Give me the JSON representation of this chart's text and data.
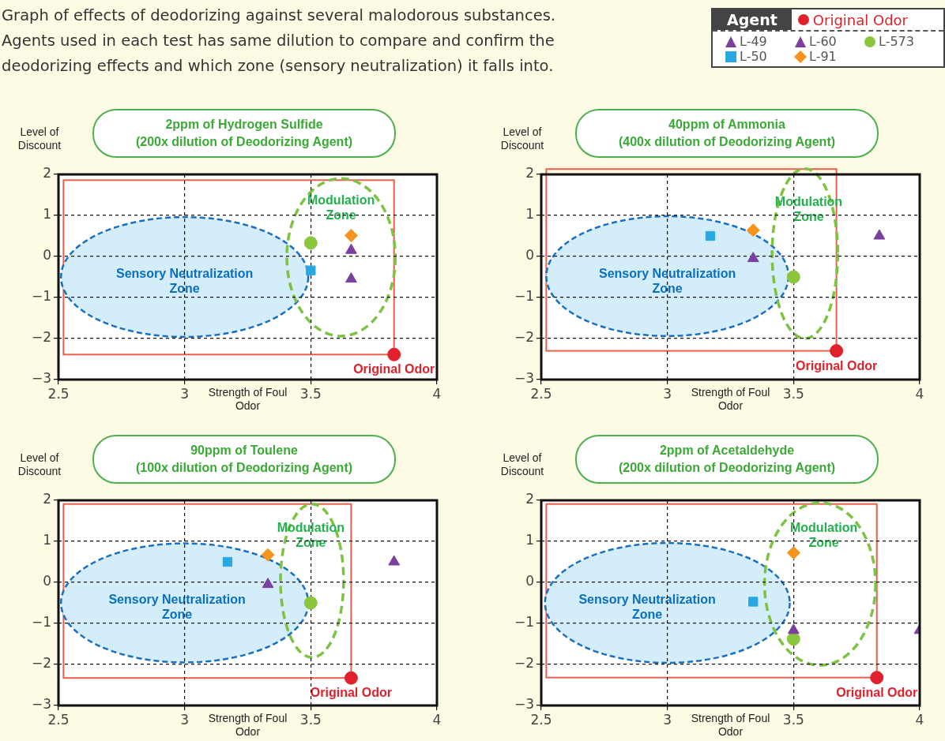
{
  "chart_data": [
    {
      "type": "scatter",
      "title": "2ppm of Hydrogen Sulfide\n(200x dilution of Deodorizing Agent)",
      "xlabel": "Strength of Foul Odor",
      "ylabel": "Level of Discount",
      "xlim": [
        2.5,
        4
      ],
      "xticks": [
        2.5,
        3,
        3.5,
        4
      ],
      "ylim": [
        -3,
        2
      ],
      "yticks": [
        -3,
        -2,
        -1,
        0,
        1,
        2
      ],
      "grid": true,
      "legend": "top right",
      "legend_title": "Agent",
      "annotations": [
        "Sensory Neutralization Zone",
        "Modulation Zone",
        "Graph of effects of deodorizing against several malodorous substances.\nAgents used in each test has same dilution to compare and confirm the\ndeodorizing effects and which zone (sensory neutralization) it falls into."
      ],
      "series": [
        {
          "name": "L-49",
          "color": "#7b3f9e",
          "marker": "triangle",
          "x": [
            3.66
          ],
          "values": [
            0.15
          ]
        },
        {
          "name": "L-60",
          "color": "#7b3f9e",
          "marker": "triangle",
          "x": [
            3.66
          ],
          "values": [
            -0.55
          ]
        },
        {
          "name": "L-573",
          "color": "#8cc63f",
          "marker": "circle",
          "x": [
            3.5
          ],
          "values": [
            0.33
          ]
        },
        {
          "name": "L-50",
          "color": "#29a8e0",
          "marker": "square",
          "x": [
            3.5
          ],
          "values": [
            -0.34
          ]
        },
        {
          "name": "L-91",
          "color": "#f7941d",
          "marker": "diamond",
          "x": [
            3.66
          ],
          "values": [
            0.51
          ]
        },
        {
          "name": "Original Odor",
          "color": "#e0202a",
          "marker": "circle",
          "x": [
            3.83
          ],
          "values": [
            -2.39
          ]
        }
      ]
    },
    {
      "type": "scatter",
      "title": "40ppm of Ammonia\n(400x dilution of Deodorizing Agent)",
      "xlabel": "Strength of Foul Odor",
      "ylabel": "Level of Discount",
      "xlim": [
        2.5,
        4
      ],
      "xticks": [
        2.5,
        3,
        3.5,
        4
      ],
      "ylim": [
        -3,
        2
      ],
      "yticks": [
        -3,
        -2,
        -1,
        0,
        1,
        2
      ],
      "grid": true,
      "annotations": [
        "Sensory Neutralization Zone",
        "Modulation Zone"
      ],
      "series": [
        {
          "color": "#7b3f9e",
          "marker": "triangle",
          "x": [
            3.84
          ],
          "values": [
            0.5
          ]
        },
        {
          "color": "#7b3f9e",
          "marker": "triangle",
          "x": [
            3.34
          ],
          "values": [
            -0.05
          ]
        },
        {
          "color": "#8cc63f",
          "marker": "circle",
          "x": [
            3.5
          ],
          "values": [
            -0.5
          ]
        },
        {
          "color": "#29a8e0",
          "marker": "square",
          "x": [
            3.17
          ],
          "values": [
            0.5
          ]
        },
        {
          "color": "#f7941d",
          "marker": "diamond",
          "x": [
            3.34
          ],
          "values": [
            0.64
          ]
        },
        {
          "name": "Original Odor",
          "color": "#e0202a",
          "marker": "circle",
          "x": [
            3.67
          ],
          "values": [
            -2.3
          ]
        }
      ]
    },
    {
      "type": "scatter",
      "title": "90ppm of Toulene\n(100x dilution of Deodorizing Agent)",
      "xlabel": "Strength of Foul Odor",
      "ylabel": "Level of Discount",
      "xlim": [
        2.5,
        4
      ],
      "xticks": [
        2.5,
        3,
        3.5,
        4
      ],
      "ylim": [
        -3,
        2
      ],
      "yticks": [
        -3,
        -2,
        -1,
        0,
        1,
        2
      ],
      "grid": true,
      "annotations": [
        "Sensory Neutralization Zone",
        "Modulation Zone"
      ],
      "series": [
        {
          "color": "#7b3f9e",
          "marker": "triangle",
          "x": [
            3.83
          ],
          "values": [
            0.5
          ]
        },
        {
          "color": "#7b3f9e",
          "marker": "triangle",
          "x": [
            3.33
          ],
          "values": [
            -0.05
          ]
        },
        {
          "color": "#8cc63f",
          "marker": "circle",
          "x": [
            3.5
          ],
          "values": [
            -0.5
          ]
        },
        {
          "color": "#29a8e0",
          "marker": "square",
          "x": [
            3.17
          ],
          "values": [
            0.5
          ]
        },
        {
          "color": "#f7941d",
          "marker": "diamond",
          "x": [
            3.33
          ],
          "values": [
            0.67
          ]
        },
        {
          "name": "Original Odor",
          "color": "#e0202a",
          "marker": "circle",
          "x": [
            3.66
          ],
          "values": [
            -2.33
          ]
        }
      ]
    },
    {
      "type": "scatter",
      "title": "2ppm of Acetaldehyde\n(200x dilution of Deodorizing Agent)",
      "xlabel": "Strength of Foul Odor",
      "ylabel": "Level of Discount",
      "xlim": [
        2.5,
        4
      ],
      "xticks": [
        2.5,
        3,
        3.5,
        4
      ],
      "ylim": [
        -3,
        2
      ],
      "yticks": [
        -3,
        -2,
        -1,
        0,
        1,
        2
      ],
      "grid": true,
      "annotations": [
        "Sensory Neutralization Zone",
        "Modulation Zone"
      ],
      "series": [
        {
          "color": "#7b3f9e",
          "marker": "triangle",
          "x": [
            4.0
          ],
          "values": [
            -1.17
          ]
        },
        {
          "color": "#7b3f9e",
          "marker": "triangle",
          "x": [
            3.5
          ],
          "values": [
            -1.17
          ]
        },
        {
          "color": "#8cc63f",
          "marker": "circle",
          "x": [
            3.5
          ],
          "values": [
            -1.38
          ]
        },
        {
          "color": "#29a8e0",
          "marker": "square",
          "x": [
            3.34
          ],
          "values": [
            -0.47
          ]
        },
        {
          "color": "#f7941d",
          "marker": "diamond",
          "x": [
            3.5
          ],
          "values": [
            0.72
          ]
        },
        {
          "name": "Original Odor",
          "color": "#e0202a",
          "marker": "circle",
          "x": [
            3.83
          ],
          "values": [
            -2.32
          ]
        }
      ]
    }
  ]
}
